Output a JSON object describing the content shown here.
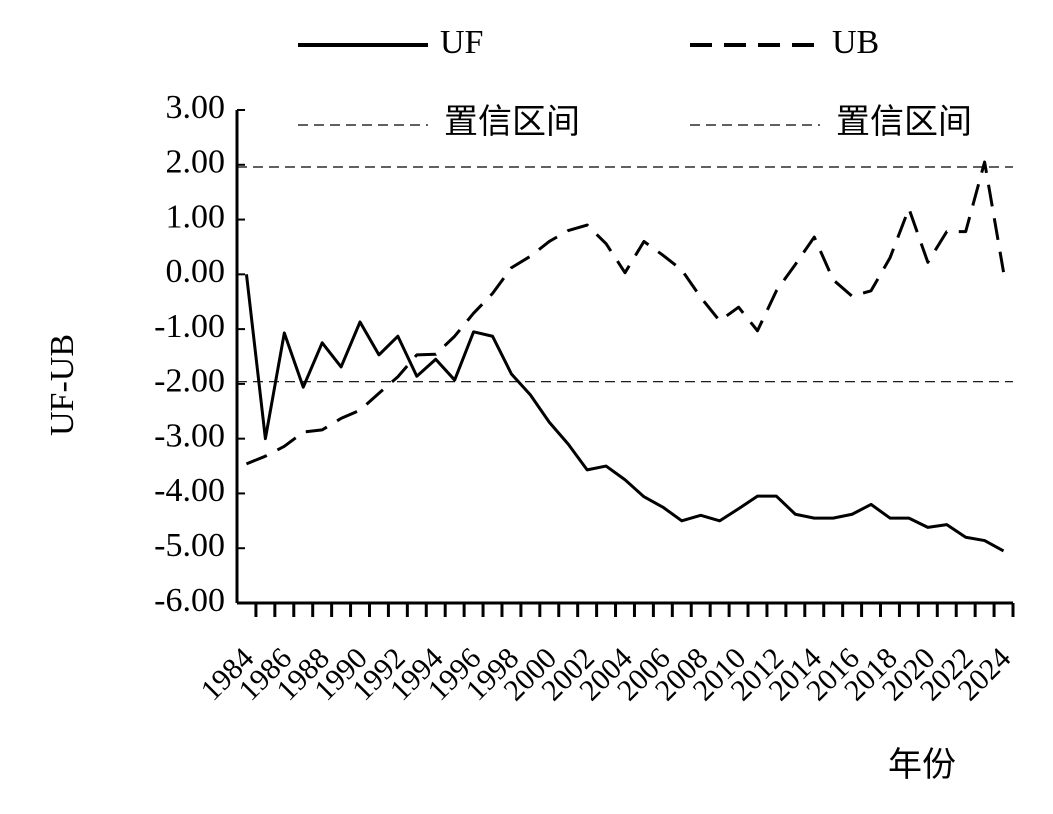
{
  "chart_data": {
    "type": "line",
    "y_label": "UF-UB",
    "x_label": "年份",
    "categories": [
      "1984",
      null,
      "1986",
      null,
      "1988",
      null,
      "1990",
      null,
      "1992",
      null,
      "1994",
      null,
      "1996",
      null,
      "1998",
      null,
      "2000",
      null,
      "2002",
      null,
      "2004",
      null,
      "2006",
      null,
      "2008",
      null,
      "2010",
      null,
      "2012",
      null,
      "2014",
      null,
      "2016",
      null,
      "2018",
      null,
      "2020",
      null,
      "2022",
      null,
      "2024"
    ],
    "series": [
      {
        "name": "UF",
        "color": "#000000",
        "dash": "solid",
        "values": [
          0,
          -3.0,
          -1.07,
          -2.06,
          -1.25,
          -1.69,
          -0.87,
          -1.47,
          -1.13,
          -1.86,
          -1.55,
          -1.93,
          -1.05,
          -1.13,
          -1.82,
          -2.2,
          -2.7,
          -3.1,
          -3.57,
          -3.5,
          -3.75,
          -4.06,
          -4.25,
          -4.5,
          -4.4,
          -4.5,
          -4.28,
          -4.05,
          -4.05,
          -4.38,
          -4.45,
          -4.45,
          -4.38,
          -4.2,
          -4.45,
          -4.45,
          -4.62,
          -4.57,
          -4.8,
          -4.86,
          -5.05
        ]
      },
      {
        "name": "UB",
        "color": "#000000",
        "dash": "dashed",
        "values": [
          -3.46,
          -3.32,
          -3.14,
          -2.88,
          -2.84,
          -2.63,
          -2.48,
          -2.17,
          -1.87,
          -1.47,
          -1.46,
          -1.13,
          -0.71,
          -0.35,
          0.12,
          0.33,
          0.6,
          0.8,
          0.9,
          0.56,
          0.03,
          0.6,
          0.35,
          0.08,
          -0.42,
          -0.85,
          -0.6,
          -1.03,
          -0.3,
          0.18,
          0.68,
          -0.1,
          -0.4,
          -0.3,
          0.3,
          1.2,
          0.22,
          0.78,
          0.78,
          2.05,
          0.04
        ]
      }
    ],
    "reference_lines": [
      {
        "name": "置信区间",
        "value": 1.96
      },
      {
        "name": "置信区间",
        "value": -1.96
      }
    ],
    "ylim": [
      -6,
      3
    ],
    "yticks": [
      {
        "value": 3,
        "label": "3.00"
      },
      {
        "value": 2,
        "label": "2.00"
      },
      {
        "value": 1,
        "label": "1.00"
      },
      {
        "value": 0,
        "label": "0.00"
      },
      {
        "value": -1,
        "label": "-1.00"
      },
      {
        "value": -2,
        "label": "-2.00"
      },
      {
        "value": -3,
        "label": "-3.00"
      },
      {
        "value": -4,
        "label": "-4.00"
      },
      {
        "value": -5,
        "label": "-5.00"
      },
      {
        "value": -6,
        "label": "-6.00"
      }
    ]
  }
}
